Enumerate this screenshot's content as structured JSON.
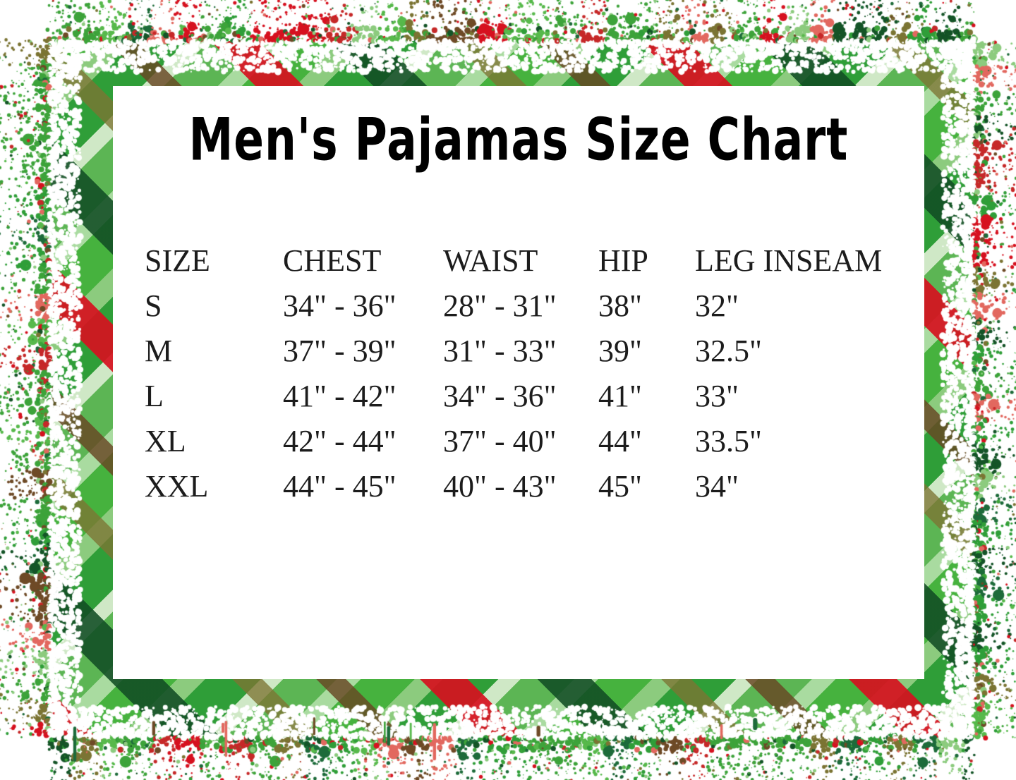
{
  "title": "Men's Pajamas Size Chart",
  "table": {
    "headers": [
      "SIZE",
      "CHEST",
      "WAIST",
      "HIP",
      "LEG INSEAM"
    ],
    "rows": [
      {
        "size": "S",
        "chest": "34\" - 36\"",
        "waist": "28\" - 31\"",
        "hip": "38\"",
        "leg_inseam": "32\""
      },
      {
        "size": "M",
        "chest": "37\" - 39\"",
        "waist": "31\" - 33\"",
        "hip": "39\"",
        "leg_inseam": "32.5\""
      },
      {
        "size": "L",
        "chest": "41\" - 42\"",
        "waist": "34\" - 36\"",
        "hip": "41\"",
        "leg_inseam": "33\""
      },
      {
        "size": "XL",
        "chest": "42\" - 44\"",
        "waist": "37\" - 40\"",
        "hip": "44\"",
        "leg_inseam": "33.5\""
      },
      {
        "size": "XXL",
        "chest": "44\" - 45\"",
        "waist": "40\" - 43\"",
        "hip": "45\"",
        "leg_inseam": "34\""
      }
    ]
  },
  "theme": {
    "background": "#ffffff",
    "text_color": "#1c1c1c",
    "title_color": "#000000",
    "palette": [
      "#3da33a",
      "#57b94b",
      "#2f9e38",
      "#8ccb7e",
      "#1d6b3a",
      "#145427",
      "#d6111f",
      "#c62828",
      "#e2685f",
      "#7b7433",
      "#6e4a26"
    ]
  }
}
